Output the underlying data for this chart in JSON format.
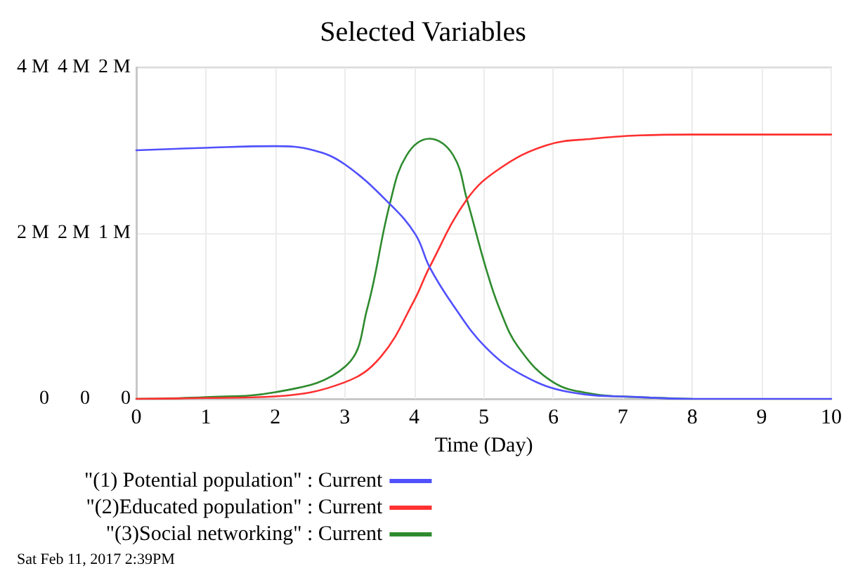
{
  "chart_data": {
    "type": "line",
    "title": "Selected Variables",
    "xlabel": "Time (Day)",
    "xlim": [
      0,
      10
    ],
    "xticks": [
      0,
      1,
      2,
      3,
      4,
      5,
      6,
      7,
      8,
      9,
      10
    ],
    "ylim": [
      0,
      4000000
    ],
    "yticks": [
      {
        "value": 0,
        "label": "0"
      },
      {
        "value": 2000000,
        "label": "2 M"
      },
      {
        "value": 4000000,
        "label": "4 M"
      }
    ],
    "y2lim": [
      0,
      4000000
    ],
    "y2ticks": [
      {
        "value": 0,
        "label": "0"
      },
      {
        "value": 2000000,
        "label": "2 M"
      },
      {
        "value": 4000000,
        "label": "4 M"
      }
    ],
    "y3lim": [
      0,
      2000000
    ],
    "y3ticks": [
      {
        "value": 0,
        "label": "0"
      },
      {
        "value": 1000000,
        "label": "1 M"
      },
      {
        "value": 2000000,
        "label": "2 M"
      }
    ],
    "series": [
      {
        "name": "\"(1) Potential population\" : Current",
        "color": "#5050ff",
        "x": [
          0,
          1,
          2,
          2.55,
          3,
          3.65,
          4.02,
          4.22,
          4.56,
          5.03,
          5.57,
          6.24,
          7.25,
          8,
          9,
          10
        ],
        "values": [
          3000000,
          3030000,
          3050000,
          3000000,
          2830000,
          2350000,
          1980000,
          1590000,
          1130000,
          620000,
          280000,
          80000,
          20000,
          0,
          0,
          0
        ]
      },
      {
        "name": "\"(2)Educated population\" : Current",
        "color": "#ff3030",
        "axis": "y2",
        "x": [
          0,
          1,
          2,
          3,
          3.52,
          4,
          4.22,
          4.76,
          5.23,
          5.9,
          6.57,
          7.25,
          8,
          9,
          10
        ],
        "values": [
          0,
          10000,
          30000,
          200000,
          510000,
          1190000,
          1590000,
          2410000,
          2780000,
          3060000,
          3140000,
          3180000,
          3190000,
          3190000,
          3190000
        ]
      },
      {
        "name": "\"(3)Social networking\" : Current",
        "color": "#2e8b2e",
        "axis": "y3",
        "x": [
          0,
          1,
          2,
          3.02,
          3.32,
          3.65,
          3.89,
          4.22,
          4.56,
          4.76,
          5.03,
          5.23,
          5.5,
          6,
          6.57,
          7.25,
          8
        ],
        "values": [
          0,
          10000,
          40000,
          200000,
          540000,
          1180000,
          1470000,
          1570000,
          1470000,
          1200000,
          790000,
          540000,
          310000,
          100000,
          30000,
          10000,
          0
        ]
      }
    ],
    "grid": true,
    "legend": "bottom",
    "marker": "none",
    "line_style": "solid",
    "annotations": [
      "Sat Feb 11, 2017 2:39PM"
    ]
  }
}
